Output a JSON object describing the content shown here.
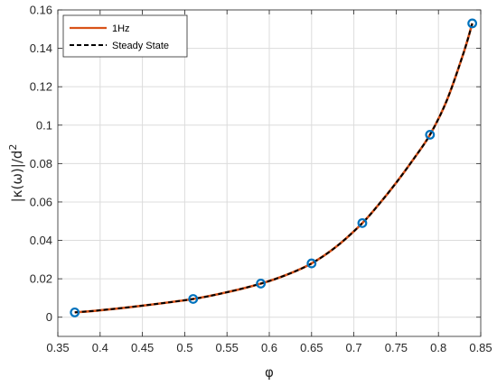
{
  "chart_data": {
    "type": "line",
    "xlabel": "φ",
    "ylabel_base": "|κ(ω)|/d",
    "ylabel_sup": "2",
    "xlim": [
      0.35,
      0.85
    ],
    "ylim": [
      -0.01,
      0.16
    ],
    "xticks": [
      0.35,
      0.4,
      0.45,
      0.5,
      0.55,
      0.6,
      0.65,
      0.7,
      0.75,
      0.8,
      0.85
    ],
    "xtick_labels": [
      "0.35",
      "0.4",
      "0.45",
      "0.5",
      "0.55",
      "0.6",
      "0.65",
      "0.7",
      "0.75",
      "0.8",
      "0.85"
    ],
    "yticks": [
      0,
      0.02,
      0.04,
      0.06,
      0.08,
      0.1,
      0.12,
      0.14,
      0.16
    ],
    "ytick_labels": [
      "0",
      "0.02",
      "0.04",
      "0.06",
      "0.08",
      "0.1",
      "0.12",
      "0.14",
      "0.16"
    ],
    "grid": true,
    "legend_position": "top-left",
    "series": [
      {
        "name": "1Hz",
        "style": "solid",
        "color": "#D95319",
        "x": [
          0.37,
          0.4,
          0.45,
          0.51,
          0.55,
          0.59,
          0.62,
          0.65,
          0.68,
          0.71,
          0.73,
          0.75,
          0.77,
          0.79,
          0.81,
          0.83,
          0.84
        ],
        "y": [
          0.0025,
          0.0036,
          0.006,
          0.0095,
          0.013,
          0.0175,
          0.022,
          0.028,
          0.037,
          0.049,
          0.059,
          0.07,
          0.082,
          0.095,
          0.113,
          0.138,
          0.153
        ]
      },
      {
        "name": "Steady State",
        "style": "dashed",
        "color": "#000000",
        "x": [
          0.37,
          0.4,
          0.45,
          0.51,
          0.55,
          0.59,
          0.62,
          0.65,
          0.68,
          0.71,
          0.73,
          0.75,
          0.77,
          0.79,
          0.81,
          0.83,
          0.84
        ],
        "y": [
          0.0025,
          0.0036,
          0.006,
          0.0095,
          0.013,
          0.0175,
          0.022,
          0.028,
          0.037,
          0.049,
          0.059,
          0.07,
          0.082,
          0.095,
          0.113,
          0.138,
          0.153
        ]
      }
    ],
    "markers": {
      "style": "circle",
      "color": "#0072BD",
      "x": [
        0.37,
        0.51,
        0.59,
        0.65,
        0.71,
        0.79,
        0.84
      ],
      "y": [
        0.0025,
        0.0095,
        0.0175,
        0.028,
        0.049,
        0.095,
        0.153
      ]
    }
  }
}
